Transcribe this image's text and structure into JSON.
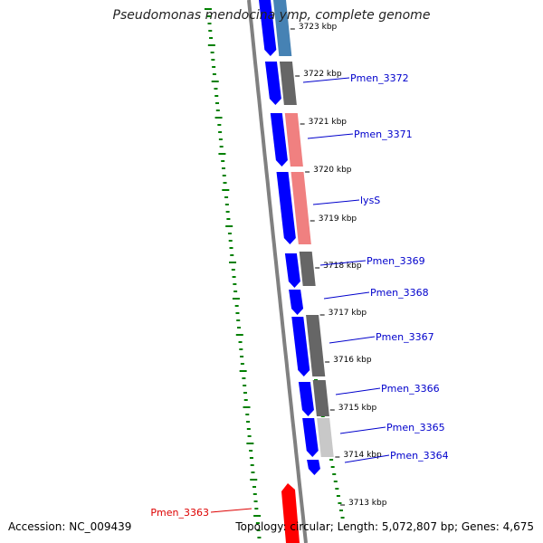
{
  "title": "Pseudomonas mendocina ymp, complete genome",
  "accession": "Accession: NC_009439",
  "topology": "Topology: circular; Length: 5,072,807 bp; Genes: 4,675",
  "colors": {
    "backbone": "#808080",
    "strand_blue": "#0000ff",
    "gc_skew": "#008000",
    "label_blue": "#0000cc",
    "label_red": "#dd0000",
    "feature_gray": "#666666",
    "feature_pink": "#f08080",
    "feature_steel": "#4682b4",
    "feature_light": "#c8c8c8",
    "feature_red": "#ff0000"
  },
  "ticks": [
    {
      "label": "3723 kbp"
    },
    {
      "label": "3722 kbp"
    },
    {
      "label": "3721 kbp"
    },
    {
      "label": "3720 kbp"
    },
    {
      "label": "3719 kbp"
    },
    {
      "label": "3718 kbp"
    },
    {
      "label": "3717 kbp"
    },
    {
      "label": "3716 kbp"
    },
    {
      "label": "3715 kbp"
    },
    {
      "label": "3714 kbp"
    },
    {
      "label": "3713 kbp"
    }
  ],
  "gene_labels": [
    {
      "text": "Pmen_3372",
      "color": "blue"
    },
    {
      "text": "Pmen_3371",
      "color": "blue"
    },
    {
      "text": "lysS",
      "color": "blue"
    },
    {
      "text": "Pmen_3369",
      "color": "blue"
    },
    {
      "text": "Pmen_3368",
      "color": "blue"
    },
    {
      "text": "Pmen_3367",
      "color": "blue"
    },
    {
      "text": "Pmen_3366",
      "color": "blue"
    },
    {
      "text": "Pmen_3365",
      "color": "blue"
    },
    {
      "text": "Pmen_3364",
      "color": "blue"
    },
    {
      "text": "Pmen_3363",
      "color": "red"
    }
  ]
}
